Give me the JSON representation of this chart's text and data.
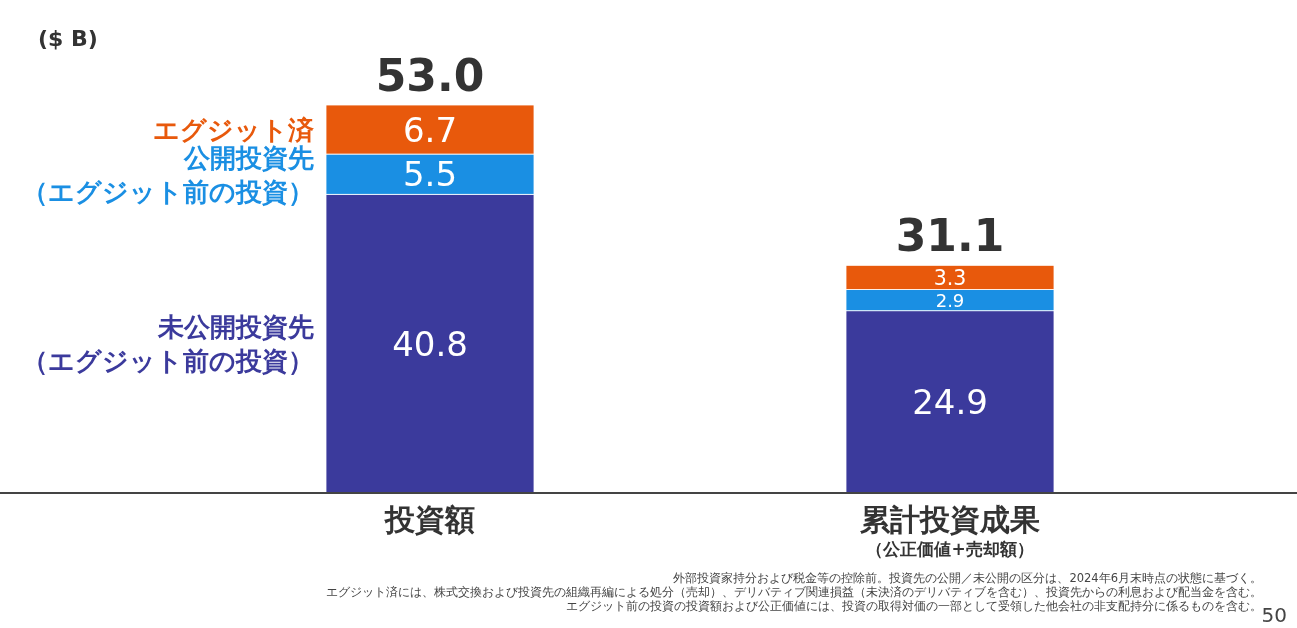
{
  "chart_data": {
    "type": "bar",
    "stacked": true,
    "ylabel": "($ B)",
    "categories": [
      "投資額",
      "累計投資成果（公正価値+売却額）"
    ],
    "series": [
      {
        "name": "未公開投資先（エグジット前の投資）",
        "color": "#3b3a9c",
        "values": [
          40.8,
          24.9
        ]
      },
      {
        "name": "公開投資先（エグジット前の投資）",
        "color": "#1a8fe3",
        "values": [
          5.5,
          2.9
        ]
      },
      {
        "name": "エグジット済",
        "color": "#e8590c",
        "values": [
          6.7,
          3.3
        ]
      }
    ],
    "data_labels": true,
    "totals": [
      "53.0",
      "31.1"
    ],
    "legend": "left",
    "annotations": [
      "外部投資家持分および税金等の控除前。投資先の公開／未公開の区分は、2024年6月末時点の状態に基づく。",
      "エグジット済には、株式交換および投資先の組織再編による処分（売却）、デリバティブ関連損益（未決済のデリバティブを含む）、投資先からの利息および配当金を含む。",
      "エグジット前の投資の投資額および公正価値には、投資の取得対価の一部として受領した他会社の非支配持分に係るものを含む。",
      "50"
    ]
  }
}
